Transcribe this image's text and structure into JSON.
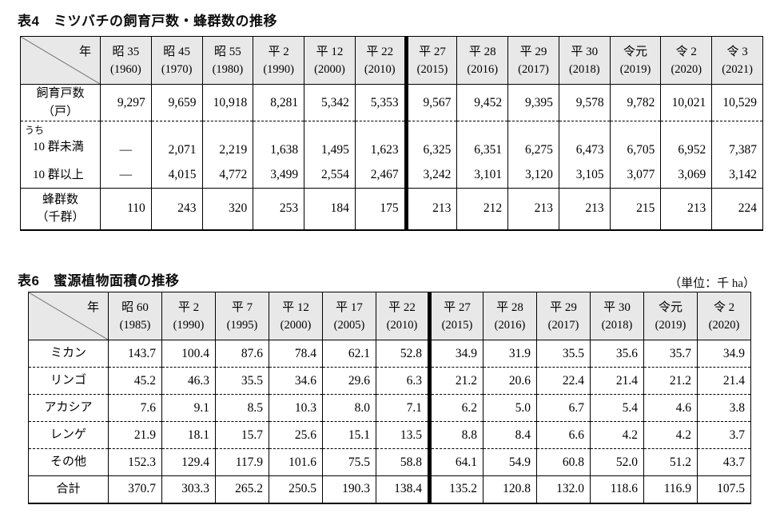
{
  "page": {
    "background": "#ffffff",
    "border_color": "#000000",
    "header_bg": "#e8e8e8"
  },
  "table4": {
    "title": "表4　ミツバチの飼育戸数・蜂群数の推移",
    "corner_label": "年",
    "thick_divider_before_index": 6,
    "columns": [
      {
        "era": "昭 35",
        "year": "(1960)"
      },
      {
        "era": "昭 45",
        "year": "(1970)"
      },
      {
        "era": "昭 55",
        "year": "(1980)"
      },
      {
        "era": "平 2",
        "year": "(1990)"
      },
      {
        "era": "平 12",
        "year": "(2000)"
      },
      {
        "era": "平 22",
        "year": "(2010)"
      },
      {
        "era": "平 27",
        "year": "(2015)"
      },
      {
        "era": "平 28",
        "year": "(2016)"
      },
      {
        "era": "平 29",
        "year": "(2017)"
      },
      {
        "era": "平 30",
        "year": "(2018)"
      },
      {
        "era": "令元",
        "year": "(2019)"
      },
      {
        "era": "令 2",
        "year": "(2020)"
      },
      {
        "era": "令 3",
        "year": "(2021)"
      }
    ],
    "rows": [
      {
        "label_lines": [
          "飼育戸数",
          "（戸）"
        ],
        "label_class": "center",
        "border": "dashed",
        "values": [
          "9,297",
          "9,659",
          "10,918",
          "8,281",
          "5,342",
          "5,353",
          "9,567",
          "9,452",
          "9,395",
          "9,578",
          "9,782",
          "10,021",
          "10,529"
        ]
      },
      {
        "label_lines": [
          "うち",
          "10 群未満"
        ],
        "label_class": "uchi",
        "border": "none",
        "valign": "bottom",
        "values": [
          "—",
          "2,071",
          "2,219",
          "1,638",
          "1,495",
          "1,623",
          "6,325",
          "6,351",
          "6,275",
          "6,473",
          "6,705",
          "6,952",
          "7,387"
        ]
      },
      {
        "label_lines": [
          "10 群以上"
        ],
        "label_class": "indent",
        "border": "solid",
        "values": [
          "—",
          "4,015",
          "4,772",
          "3,499",
          "2,554",
          "2,467",
          "3,242",
          "3,101",
          "3,120",
          "3,105",
          "3,077",
          "3,069",
          "3,142"
        ]
      },
      {
        "label_lines": [
          "蜂群数",
          "（千群）"
        ],
        "label_class": "center",
        "border": "none",
        "values": [
          "110",
          "243",
          "320",
          "253",
          "184",
          "175",
          "213",
          "212",
          "213",
          "213",
          "215",
          "213",
          "224"
        ]
      }
    ]
  },
  "table6": {
    "title": "表6　蜜源植物面積の推移",
    "unit_note": "（単位：千 ha）",
    "corner_label": "年",
    "thick_divider_before_index": 6,
    "columns": [
      {
        "era": "昭 60",
        "year": "(1985)"
      },
      {
        "era": "平 2",
        "year": "(1990)"
      },
      {
        "era": "平 7",
        "year": "(1995)"
      },
      {
        "era": "平 12",
        "year": "(2000)"
      },
      {
        "era": "平 17",
        "year": "(2005)"
      },
      {
        "era": "平 22",
        "year": "(2010)"
      },
      {
        "era": "平 27",
        "year": "(2015)"
      },
      {
        "era": "平 28",
        "year": "(2016)"
      },
      {
        "era": "平 29",
        "year": "(2017)"
      },
      {
        "era": "平 30",
        "year": "(2018)"
      },
      {
        "era": "令元",
        "year": "(2019)"
      },
      {
        "era": "令 2",
        "year": "(2020)"
      }
    ],
    "rows": [
      {
        "label_lines": [
          "ミカン"
        ],
        "label_class": "center",
        "border": "dashed",
        "values": [
          "143.7",
          "100.4",
          "87.6",
          "78.4",
          "62.1",
          "52.8",
          "34.9",
          "31.9",
          "35.5",
          "35.6",
          "35.7",
          "34.9"
        ]
      },
      {
        "label_lines": [
          "リンゴ"
        ],
        "label_class": "center",
        "border": "dashed",
        "values": [
          "45.2",
          "46.3",
          "35.5",
          "34.6",
          "29.6",
          "6.3",
          "21.2",
          "20.6",
          "22.4",
          "21.4",
          "21.2",
          "21.4"
        ]
      },
      {
        "label_lines": [
          "アカシア"
        ],
        "label_class": "center",
        "border": "dashed",
        "values": [
          "7.6",
          "9.1",
          "8.5",
          "10.3",
          "8.0",
          "7.1",
          "6.2",
          "5.0",
          "6.7",
          "5.4",
          "4.6",
          "3.8"
        ]
      },
      {
        "label_lines": [
          "レンゲ"
        ],
        "label_class": "center",
        "border": "dashed",
        "values": [
          "21.9",
          "18.1",
          "15.7",
          "25.6",
          "15.1",
          "13.5",
          "8.8",
          "8.4",
          "6.6",
          "4.2",
          "4.2",
          "3.7"
        ]
      },
      {
        "label_lines": [
          "その他"
        ],
        "label_class": "center",
        "border": "solid",
        "values": [
          "152.3",
          "129.4",
          "117.9",
          "101.6",
          "75.5",
          "58.8",
          "64.1",
          "54.9",
          "60.8",
          "52.0",
          "51.2",
          "43.7"
        ]
      },
      {
        "label_lines": [
          "合計"
        ],
        "label_class": "center",
        "border": "none",
        "values": [
          "370.7",
          "303.3",
          "265.2",
          "250.5",
          "190.3",
          "138.4",
          "135.2",
          "120.8",
          "132.0",
          "118.6",
          "116.9",
          "107.5"
        ]
      }
    ]
  }
}
